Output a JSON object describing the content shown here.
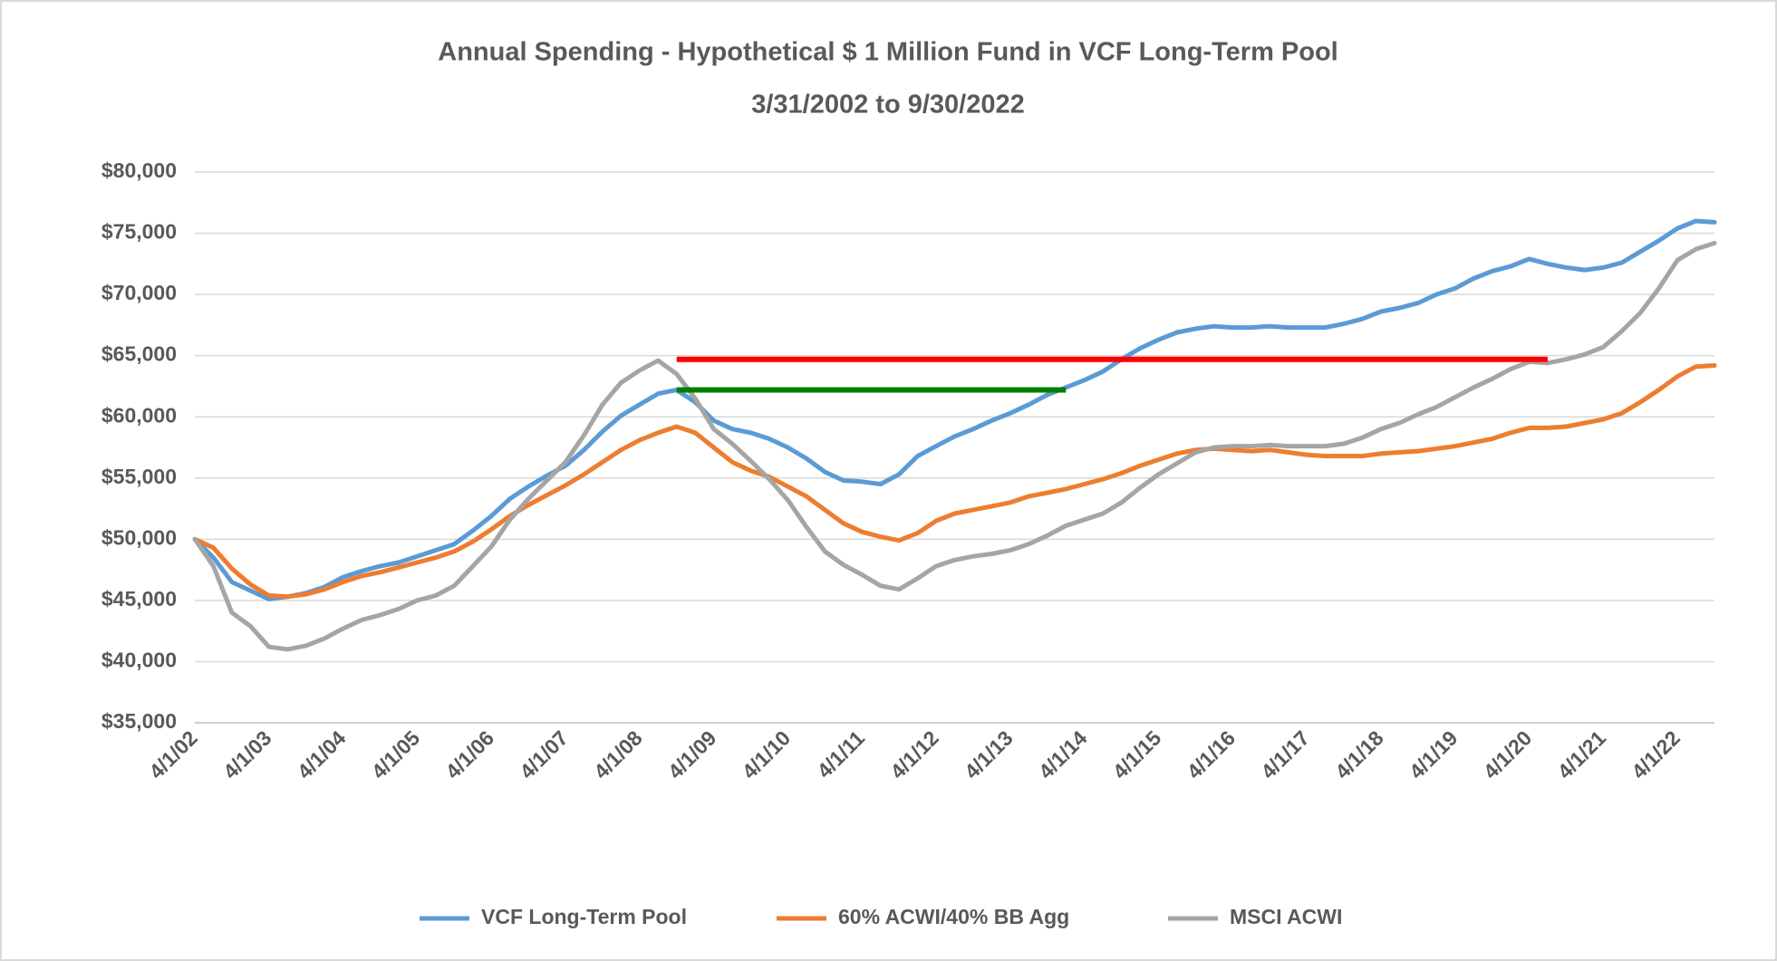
{
  "chart_data": {
    "type": "line",
    "title": "Annual Spending  - Hypothetical $ 1 Million Fund in VCF Long-Term Pool",
    "subtitle": "3/31/2002 to 9/30/2022",
    "categories": [
      "4/1/02",
      null,
      null,
      null,
      "4/1/03",
      null,
      null,
      null,
      "4/1/04",
      null,
      null,
      null,
      "4/1/05",
      null,
      null,
      null,
      "4/1/06",
      null,
      null,
      null,
      "4/1/07",
      null,
      null,
      null,
      "4/1/08",
      null,
      null,
      null,
      "4/1/09",
      null,
      null,
      null,
      "4/1/10",
      null,
      null,
      null,
      "4/1/11",
      null,
      null,
      null,
      "4/1/12",
      null,
      null,
      null,
      "4/1/13",
      null,
      null,
      null,
      "4/1/14",
      null,
      null,
      null,
      "4/1/15",
      null,
      null,
      null,
      "4/1/16",
      null,
      null,
      null,
      "4/1/17",
      null,
      null,
      null,
      "4/1/18",
      null,
      null,
      null,
      "4/1/19",
      null,
      null,
      null,
      "4/1/20",
      null,
      null,
      null,
      "4/1/21",
      null,
      null,
      null,
      "4/1/22",
      null,
      null
    ],
    "series": [
      {
        "name": "VCF Long-Term Pool",
        "color": "#5b9bd5",
        "values": [
          50000,
          48500,
          46500,
          45800,
          45100,
          45300,
          45600,
          46100,
          46900,
          47400,
          47800,
          48100,
          48600,
          49100,
          49600,
          50700,
          51900,
          53300,
          54300,
          55200,
          56000,
          57300,
          58800,
          60100,
          61000,
          61900,
          62200,
          61200,
          59700,
          59000,
          58700,
          58200,
          57500,
          56600,
          55500,
          54800,
          54700,
          54500,
          55300,
          56800,
          57600,
          58400,
          59000,
          59700,
          60300,
          61000,
          61800,
          62400,
          63000,
          63700,
          64700,
          65600,
          66300,
          66900,
          67200,
          67400,
          67300,
          67300,
          67400,
          67300,
          67300,
          67300,
          67600,
          68000,
          68600,
          68900,
          69300,
          70000,
          70500,
          71300,
          71900,
          72300,
          72900,
          72500,
          72200,
          72000,
          72200,
          72600,
          73500,
          74400,
          75400,
          76000,
          75900
        ]
      },
      {
        "name": "60% ACWI/40% BB Agg",
        "color": "#ed7d31",
        "values": [
          50000,
          49300,
          47600,
          46300,
          45400,
          45300,
          45500,
          45900,
          46500,
          47000,
          47300,
          47700,
          48100,
          48500,
          49000,
          49800,
          50800,
          51900,
          52800,
          53600,
          54400,
          55300,
          56300,
          57300,
          58100,
          58700,
          59200,
          58700,
          57500,
          56300,
          55600,
          55100,
          54300,
          53500,
          52400,
          51300,
          50600,
          50200,
          49900,
          50500,
          51500,
          52100,
          52400,
          52700,
          53000,
          53500,
          53800,
          54100,
          54500,
          54900,
          55400,
          56000,
          56500,
          57000,
          57300,
          57400,
          57300,
          57200,
          57300,
          57100,
          56900,
          56800,
          56800,
          56800,
          57000,
          57100,
          57200,
          57400,
          57600,
          57900,
          58200,
          58700,
          59100,
          59100,
          59200,
          59500,
          59800,
          60300,
          61200,
          62200,
          63300,
          64100,
          64200
        ]
      },
      {
        "name": "MSCI ACWI",
        "color": "#a5a5a5",
        "values": [
          50000,
          47800,
          44000,
          42900,
          41200,
          41000,
          41300,
          41900,
          42700,
          43400,
          43800,
          44300,
          45000,
          45400,
          46200,
          47800,
          49400,
          51600,
          53300,
          54800,
          56300,
          58500,
          61000,
          62800,
          63800,
          64600,
          63500,
          61500,
          59000,
          57800,
          56400,
          54900,
          53200,
          51000,
          49000,
          47900,
          47100,
          46200,
          45900,
          46800,
          47800,
          48300,
          48600,
          48800,
          49100,
          49600,
          50300,
          51100,
          51600,
          52100,
          53000,
          54200,
          55300,
          56200,
          57100,
          57500,
          57600,
          57600,
          57700,
          57600,
          57600,
          57600,
          57800,
          58300,
          59000,
          59500,
          60200,
          60800,
          61600,
          62400,
          63100,
          63900,
          64500,
          64400,
          64700,
          65100,
          65700,
          67000,
          68500,
          70500,
          72800,
          73700,
          74200
        ]
      }
    ],
    "reference_lines": [
      {
        "value": 64700,
        "start": 26,
        "end": 73,
        "color": "#ff0000"
      },
      {
        "value": 62200,
        "start": 26,
        "end": 47,
        "color": "#008000"
      }
    ],
    "ylim": [
      35000,
      80000
    ],
    "yticks": [
      {
        "value": 35000,
        "label": "$35,000"
      },
      {
        "value": 40000,
        "label": "$40,000"
      },
      {
        "value": 45000,
        "label": "$45,000"
      },
      {
        "value": 50000,
        "label": "$50,000"
      },
      {
        "value": 55000,
        "label": "$55,000"
      },
      {
        "value": 60000,
        "label": "$60,000"
      },
      {
        "value": 65000,
        "label": "$65,000"
      },
      {
        "value": 70000,
        "label": "$70,000"
      },
      {
        "value": 75000,
        "label": "$75,000"
      },
      {
        "value": 80000,
        "label": "$80,000"
      }
    ],
    "grid": true,
    "legend": "bottom"
  }
}
